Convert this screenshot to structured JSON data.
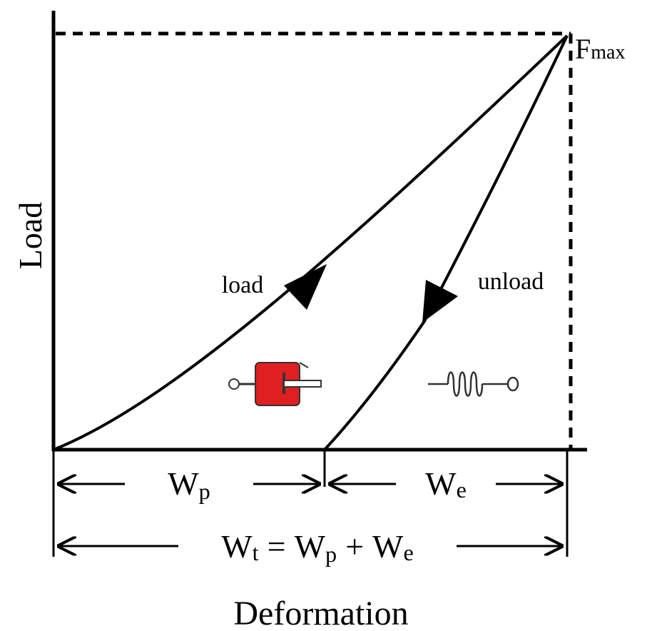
{
  "y_axis_label": "Load",
  "x_axis_label": "Deformation",
  "peak_label": {
    "base": "F",
    "sub": "max"
  },
  "load_label": "load",
  "unload_label": "unload",
  "plastic_work": {
    "base": "W",
    "sub": "p"
  },
  "elastic_work": {
    "base": "W",
    "sub": "e"
  },
  "equation": {
    "lhs": {
      "base": "W",
      "sub": "t"
    },
    "op1": "=",
    "a": {
      "base": "W",
      "sub": "p"
    },
    "op2": "+",
    "b": {
      "base": "W",
      "sub": "e"
    }
  }
}
